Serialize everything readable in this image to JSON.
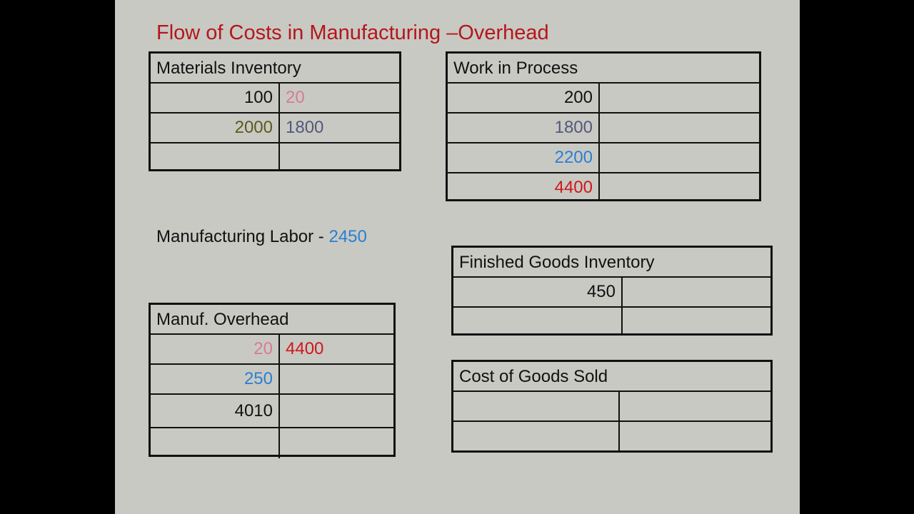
{
  "title": "Flow of Costs in Manufacturing –Overhead",
  "labor": {
    "label": "Manufacturing Labor - ",
    "value": "2450",
    "value_color": "#2a7fd0"
  },
  "colors": {
    "black": "#111111",
    "pink": "#d97a9a",
    "olive": "#5a5a1e",
    "slate": "#55577a",
    "blue": "#2a7fd0",
    "red": "#d0161b"
  },
  "accounts": [
    {
      "id": "mi",
      "title": "Materials Inventory",
      "rows": [
        {
          "debit": "100",
          "debit_color": "black",
          "credit": "20",
          "credit_color": "pink"
        },
        {
          "debit": "2000",
          "debit_color": "olive",
          "credit": "1800",
          "credit_color": "slate"
        },
        {
          "debit": "",
          "credit": ""
        }
      ]
    },
    {
      "id": "wip",
      "title": "Work in Process",
      "rows": [
        {
          "debit": "200",
          "debit_color": "black",
          "credit": ""
        },
        {
          "debit": "1800",
          "debit_color": "slate",
          "credit": ""
        },
        {
          "debit": "2200",
          "debit_color": "blue",
          "credit": ""
        },
        {
          "debit": "4400",
          "debit_color": "red",
          "credit": ""
        }
      ]
    },
    {
      "id": "fg",
      "title": "Finished Goods Inventory",
      "rows": [
        {
          "debit": "450",
          "debit_color": "black",
          "credit": ""
        },
        {
          "debit": "",
          "credit": ""
        }
      ]
    },
    {
      "id": "mo",
      "title": "Manuf. Overhead",
      "rows": [
        {
          "debit": "20",
          "debit_color": "pink",
          "credit": "4400",
          "credit_color": "red"
        },
        {
          "debit": "250",
          "debit_color": "blue",
          "credit": ""
        },
        {
          "debit": "4010",
          "debit_color": "black",
          "credit": ""
        },
        {
          "debit": "",
          "credit": ""
        }
      ]
    },
    {
      "id": "cogs",
      "title": "Cost of Goods Sold",
      "rows": [
        {
          "debit": "",
          "credit": ""
        },
        {
          "debit": "",
          "credit": ""
        }
      ]
    }
  ]
}
